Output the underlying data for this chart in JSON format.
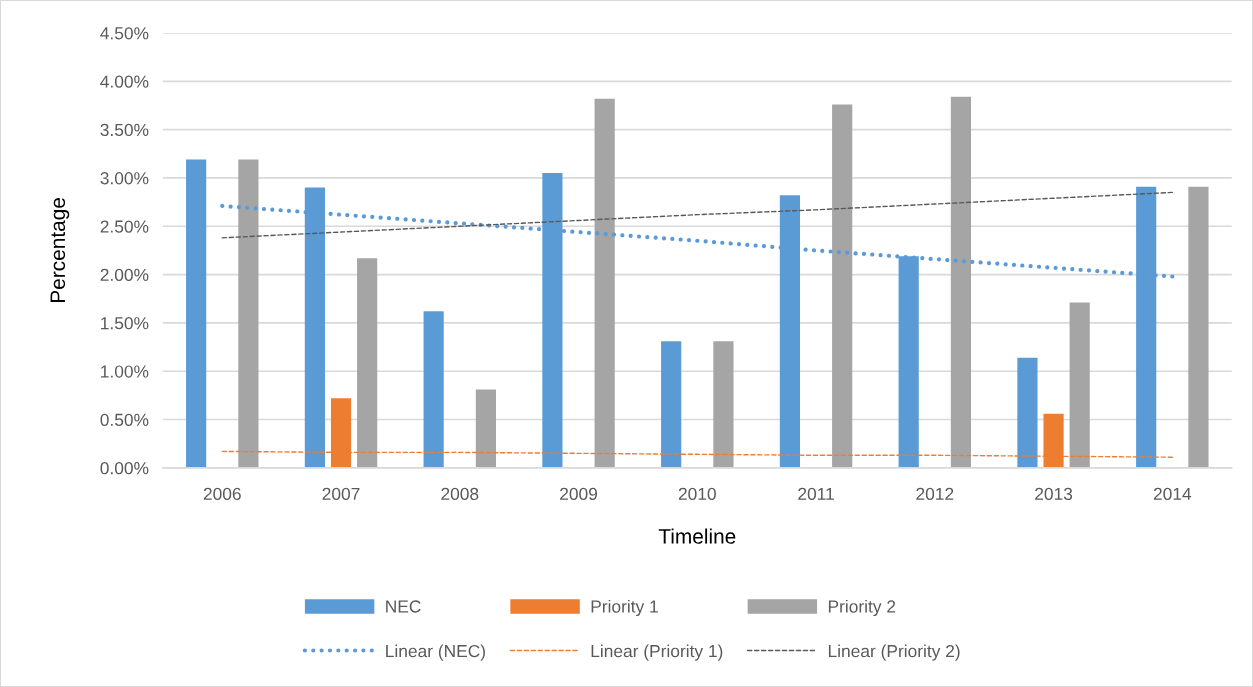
{
  "chart_data": {
    "type": "bar",
    "xlabel": "Timeline",
    "ylabel": "Percentage",
    "categories": [
      "2006",
      "2007",
      "2008",
      "2009",
      "2010",
      "2011",
      "2012",
      "2013",
      "2014"
    ],
    "series": [
      {
        "name": "NEC",
        "color": "#5b9bd5",
        "values": [
          3.19,
          2.9,
          1.62,
          3.05,
          1.31,
          2.82,
          2.19,
          1.14,
          2.91
        ]
      },
      {
        "name": "Priority 1",
        "color": "#ed7d31",
        "values": [
          null,
          0.72,
          null,
          null,
          null,
          null,
          null,
          0.56,
          null
        ]
      },
      {
        "name": "Priority 2",
        "color": "#a5a5a5",
        "values": [
          3.19,
          2.17,
          0.81,
          3.82,
          1.31,
          3.76,
          3.84,
          1.71,
          2.91
        ]
      },
      {
        "name": "Linear (NEC)",
        "type": "line",
        "line_style": "dotted",
        "color": "#5b9bd5",
        "values": [
          2.71,
          2.62,
          2.53,
          2.44,
          2.35,
          2.25,
          2.16,
          2.07,
          1.98
        ]
      },
      {
        "name": "Linear (Priority 1)",
        "type": "line",
        "line_style": "dashed",
        "color": "#ed7d31",
        "values": [
          0.17,
          0.16,
          0.16,
          0.15,
          0.14,
          0.13,
          0.13,
          0.12,
          0.11
        ]
      },
      {
        "name": "Linear (Priority 2)",
        "type": "line",
        "line_style": "dashed",
        "color": "#595959",
        "values": [
          2.38,
          2.44,
          2.5,
          2.56,
          2.62,
          2.67,
          2.73,
          2.79,
          2.85
        ]
      }
    ],
    "ylim": [
      0,
      4.5
    ],
    "yticks": [
      {
        "value": 0,
        "label": "0.00%"
      },
      {
        "value": 0.5,
        "label": "0.50%"
      },
      {
        "value": 1,
        "label": "1.00%"
      },
      {
        "value": 1.5,
        "label": "1.50%"
      },
      {
        "value": 2,
        "label": "2.00%"
      },
      {
        "value": 2.5,
        "label": "2.50%"
      },
      {
        "value": 3,
        "label": "3.00%"
      },
      {
        "value": 3.5,
        "label": "3.50%"
      },
      {
        "value": 4,
        "label": "4.00%"
      },
      {
        "value": 4.5,
        "label": "4.50%"
      }
    ],
    "grid": "y",
    "legend": "bottom"
  }
}
